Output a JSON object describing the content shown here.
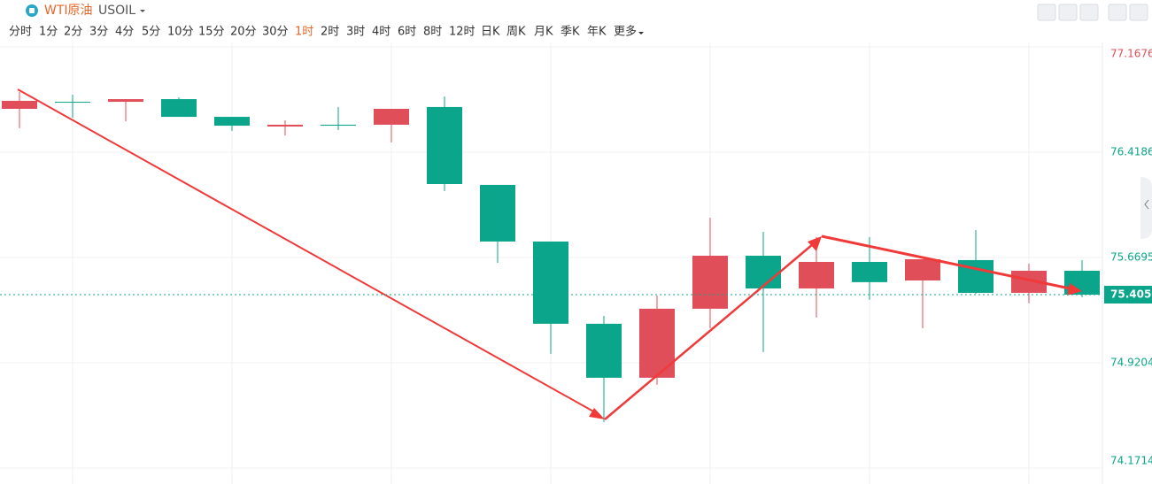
{
  "toolbar": {
    "symbol_name": "WTI原油",
    "symbol_code": "USOIL",
    "intervals": [
      "分时",
      "1分",
      "2分",
      "3分",
      "4分",
      "5分",
      "10分",
      "15分",
      "20分",
      "30分",
      "1时",
      "2时",
      "3时",
      "4时",
      "6时",
      "8时",
      "12时",
      "日K",
      "周K",
      "月K",
      "季K",
      "年K",
      "更多"
    ],
    "active_interval_index": 10
  },
  "chart_data": {
    "type": "candlestick",
    "categories": [
      null,
      null,
      null,
      null,
      null,
      null,
      null,
      null,
      null,
      null,
      null,
      null,
      null,
      null,
      null,
      null,
      null,
      null,
      null,
      null,
      null
    ],
    "open": [
      76.727,
      76.777,
      76.777,
      76.796,
      76.67,
      76.601,
      76.614,
      76.614,
      76.74,
      76.186,
      75.783,
      75.198,
      74.814,
      75.305,
      75.682,
      75.449,
      75.638,
      75.506,
      75.651,
      75.418,
      75.575
    ],
    "high": [
      76.847,
      76.828,
      76.796,
      76.809,
      76.67,
      76.645,
      76.74,
      76.727,
      76.815,
      76.186,
      75.783,
      75.254,
      75.399,
      75.953,
      75.852,
      75.815,
      75.815,
      75.657,
      75.865,
      75.626,
      75.651
    ],
    "low": [
      76.589,
      76.664,
      76.639,
      76.67,
      76.57,
      76.538,
      76.576,
      76.488,
      76.142,
      75.632,
      74.984,
      74.499,
      74.764,
      75.166,
      74.997,
      75.242,
      75.368,
      75.166,
      75.412,
      75.343,
      75.387
    ],
    "close": [
      76.784,
      76.771,
      76.796,
      76.67,
      76.607,
      76.614,
      76.607,
      76.727,
      76.192,
      75.783,
      75.198,
      74.814,
      75.305,
      75.682,
      75.449,
      75.638,
      75.494,
      75.657,
      75.418,
      75.575,
      75.405
    ],
    "up_color": "#e04e5a",
    "down_color": "#0aa58a",
    "ylim": [
      74.1714,
      77.1676
    ],
    "yticks": [
      74.1714,
      74.9204,
      75.6695,
      76.4186,
      77.1676
    ],
    "ytick_colors": [
      "#0aa58a",
      "#0aa58a",
      "#0aa58a",
      "#0aa58a",
      "#e04e5a"
    ],
    "last_price": {
      "value": 75.405,
      "label": "75.4050"
    },
    "grid": true
  }
}
